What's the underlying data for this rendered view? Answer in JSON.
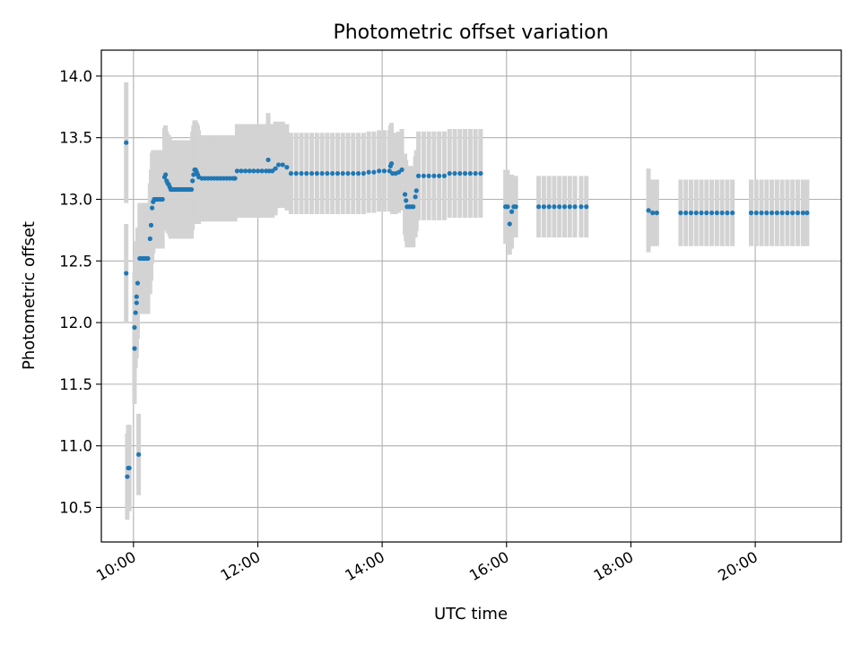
{
  "chart_data": {
    "type": "scatter",
    "title": "Photometric offset variation",
    "xlabel": "UTC time",
    "ylabel": "Photometric offset",
    "x_range": [
      "09:29",
      "21:23"
    ],
    "ylim": [
      10.22,
      14.21
    ],
    "xticks": [
      "10:00",
      "12:00",
      "14:00",
      "16:00",
      "18:00",
      "20:00"
    ],
    "yticks": [
      "10.5",
      "11.0",
      "11.5",
      "12.0",
      "12.5",
      "13.0",
      "13.5",
      "14.0"
    ],
    "grid": true,
    "colors": {
      "marker": "#1f77b4",
      "errorbar": "#d3d3d3",
      "grid": "#b0b0b0"
    },
    "points": [
      {
        "t": "09:53",
        "y": 13.46,
        "err": 0.49
      },
      {
        "t": "09:53",
        "y": 12.4,
        "err": 0.4
      },
      {
        "t": "09:54",
        "y": 10.75,
        "err": 0.35
      },
      {
        "t": "09:55",
        "y": 10.82,
        "err": 0.35
      },
      {
        "t": "09:56",
        "y": 10.82,
        "err": 0.35
      },
      {
        "t": "10:01",
        "y": 11.79,
        "err": 0.45
      },
      {
        "t": "10:01",
        "y": 11.96,
        "err": 0.45
      },
      {
        "t": "10:02",
        "y": 12.08,
        "err": 0.45
      },
      {
        "t": "10:03",
        "y": 12.16,
        "err": 0.45
      },
      {
        "t": "10:03",
        "y": 12.21,
        "err": 0.45
      },
      {
        "t": "10:04",
        "y": 12.32,
        "err": 0.45
      },
      {
        "t": "10:05",
        "y": 10.93,
        "err": 0.33
      },
      {
        "t": "10:06",
        "y": 12.52,
        "err": 0.45
      },
      {
        "t": "10:08",
        "y": 12.52,
        "err": 0.45
      },
      {
        "t": "10:10",
        "y": 12.52,
        "err": 0.45
      },
      {
        "t": "10:12",
        "y": 12.52,
        "err": 0.45
      },
      {
        "t": "10:14",
        "y": 12.52,
        "err": 0.45
      },
      {
        "t": "10:16",
        "y": 12.68,
        "err": 0.45
      },
      {
        "t": "10:17",
        "y": 12.79,
        "err": 0.45
      },
      {
        "t": "10:18",
        "y": 12.93,
        "err": 0.45
      },
      {
        "t": "10:19",
        "y": 12.98,
        "err": 0.42
      },
      {
        "t": "10:20",
        "y": 13.0,
        "err": 0.4
      },
      {
        "t": "10:22",
        "y": 13.0,
        "err": 0.4
      },
      {
        "t": "10:24",
        "y": 13.0,
        "err": 0.4
      },
      {
        "t": "10:26",
        "y": 13.0,
        "err": 0.4
      },
      {
        "t": "10:28",
        "y": 13.0,
        "err": 0.4
      },
      {
        "t": "10:30",
        "y": 13.18,
        "err": 0.4
      },
      {
        "t": "10:31",
        "y": 13.2,
        "err": 0.4
      },
      {
        "t": "10:32",
        "y": 13.15,
        "err": 0.4
      },
      {
        "t": "10:33",
        "y": 13.13,
        "err": 0.4
      },
      {
        "t": "10:34",
        "y": 13.12,
        "err": 0.4
      },
      {
        "t": "10:35",
        "y": 13.1,
        "err": 0.4
      },
      {
        "t": "10:36",
        "y": 13.08,
        "err": 0.4
      },
      {
        "t": "10:38",
        "y": 13.08,
        "err": 0.4
      },
      {
        "t": "10:40",
        "y": 13.08,
        "err": 0.4
      },
      {
        "t": "10:42",
        "y": 13.08,
        "err": 0.4
      },
      {
        "t": "10:44",
        "y": 13.08,
        "err": 0.4
      },
      {
        "t": "10:46",
        "y": 13.08,
        "err": 0.4
      },
      {
        "t": "10:48",
        "y": 13.08,
        "err": 0.4
      },
      {
        "t": "10:50",
        "y": 13.08,
        "err": 0.4
      },
      {
        "t": "10:52",
        "y": 13.08,
        "err": 0.4
      },
      {
        "t": "10:54",
        "y": 13.08,
        "err": 0.4
      },
      {
        "t": "10:56",
        "y": 13.08,
        "err": 0.4
      },
      {
        "t": "10:57",
        "y": 13.15,
        "err": 0.4
      },
      {
        "t": "10:58",
        "y": 13.2,
        "err": 0.4
      },
      {
        "t": "10:59",
        "y": 13.24,
        "err": 0.4
      },
      {
        "t": "11:00",
        "y": 13.24,
        "err": 0.4
      },
      {
        "t": "11:01",
        "y": 13.22,
        "err": 0.4
      },
      {
        "t": "11:02",
        "y": 13.2,
        "err": 0.4
      },
      {
        "t": "11:03",
        "y": 13.18,
        "err": 0.38
      },
      {
        "t": "11:06",
        "y": 13.17,
        "err": 0.35
      },
      {
        "t": "11:09",
        "y": 13.17,
        "err": 0.35
      },
      {
        "t": "11:12",
        "y": 13.17,
        "err": 0.35
      },
      {
        "t": "11:15",
        "y": 13.17,
        "err": 0.35
      },
      {
        "t": "11:18",
        "y": 13.17,
        "err": 0.35
      },
      {
        "t": "11:21",
        "y": 13.17,
        "err": 0.35
      },
      {
        "t": "11:24",
        "y": 13.17,
        "err": 0.35
      },
      {
        "t": "11:27",
        "y": 13.17,
        "err": 0.35
      },
      {
        "t": "11:30",
        "y": 13.17,
        "err": 0.35
      },
      {
        "t": "11:33",
        "y": 13.17,
        "err": 0.35
      },
      {
        "t": "11:36",
        "y": 13.17,
        "err": 0.35
      },
      {
        "t": "11:38",
        "y": 13.17,
        "err": 0.35
      },
      {
        "t": "11:40",
        "y": 13.23,
        "err": 0.38
      },
      {
        "t": "11:44",
        "y": 13.23,
        "err": 0.38
      },
      {
        "t": "11:48",
        "y": 13.23,
        "err": 0.38
      },
      {
        "t": "11:52",
        "y": 13.23,
        "err": 0.38
      },
      {
        "t": "11:56",
        "y": 13.23,
        "err": 0.38
      },
      {
        "t": "12:00",
        "y": 13.23,
        "err": 0.38
      },
      {
        "t": "12:04",
        "y": 13.23,
        "err": 0.38
      },
      {
        "t": "12:08",
        "y": 13.23,
        "err": 0.38
      },
      {
        "t": "12:10",
        "y": 13.32,
        "err": 0.38
      },
      {
        "t": "12:11",
        "y": 13.23,
        "err": 0.38
      },
      {
        "t": "12:14",
        "y": 13.23,
        "err": 0.38
      },
      {
        "t": "12:17",
        "y": 13.25,
        "err": 0.38
      },
      {
        "t": "12:20",
        "y": 13.28,
        "err": 0.35
      },
      {
        "t": "12:24",
        "y": 13.28,
        "err": 0.35
      },
      {
        "t": "12:28",
        "y": 13.26,
        "err": 0.35
      },
      {
        "t": "12:32",
        "y": 13.21,
        "err": 0.33
      },
      {
        "t": "12:37",
        "y": 13.21,
        "err": 0.33
      },
      {
        "t": "12:42",
        "y": 13.21,
        "err": 0.33
      },
      {
        "t": "12:47",
        "y": 13.21,
        "err": 0.33
      },
      {
        "t": "12:52",
        "y": 13.21,
        "err": 0.33
      },
      {
        "t": "12:57",
        "y": 13.21,
        "err": 0.33
      },
      {
        "t": "13:02",
        "y": 13.21,
        "err": 0.33
      },
      {
        "t": "13:07",
        "y": 13.21,
        "err": 0.33
      },
      {
        "t": "13:12",
        "y": 13.21,
        "err": 0.33
      },
      {
        "t": "13:17",
        "y": 13.21,
        "err": 0.33
      },
      {
        "t": "13:22",
        "y": 13.21,
        "err": 0.33
      },
      {
        "t": "13:27",
        "y": 13.21,
        "err": 0.33
      },
      {
        "t": "13:32",
        "y": 13.21,
        "err": 0.33
      },
      {
        "t": "13:37",
        "y": 13.21,
        "err": 0.33
      },
      {
        "t": "13:42",
        "y": 13.21,
        "err": 0.33
      },
      {
        "t": "13:47",
        "y": 13.22,
        "err": 0.33
      },
      {
        "t": "13:52",
        "y": 13.22,
        "err": 0.33
      },
      {
        "t": "13:57",
        "y": 13.23,
        "err": 0.33
      },
      {
        "t": "14:02",
        "y": 13.23,
        "err": 0.33
      },
      {
        "t": "14:07",
        "y": 13.23,
        "err": 0.33
      },
      {
        "t": "14:08",
        "y": 13.27,
        "err": 0.33
      },
      {
        "t": "14:09",
        "y": 13.29,
        "err": 0.33
      },
      {
        "t": "14:10",
        "y": 13.21,
        "err": 0.33
      },
      {
        "t": "14:13",
        "y": 13.21,
        "err": 0.33
      },
      {
        "t": "14:16",
        "y": 13.22,
        "err": 0.33
      },
      {
        "t": "14:19",
        "y": 13.24,
        "err": 0.33
      },
      {
        "t": "14:22",
        "y": 13.04,
        "err": 0.33
      },
      {
        "t": "14:23",
        "y": 12.99,
        "err": 0.33
      },
      {
        "t": "14:24",
        "y": 12.94,
        "err": 0.33
      },
      {
        "t": "14:26",
        "y": 12.94,
        "err": 0.33
      },
      {
        "t": "14:28",
        "y": 12.94,
        "err": 0.33
      },
      {
        "t": "14:30",
        "y": 12.94,
        "err": 0.33
      },
      {
        "t": "14:32",
        "y": 13.02,
        "err": 0.33
      },
      {
        "t": "14:33",
        "y": 13.07,
        "err": 0.33
      },
      {
        "t": "14:35",
        "y": 13.19,
        "err": 0.36
      },
      {
        "t": "14:40",
        "y": 13.19,
        "err": 0.36
      },
      {
        "t": "14:45",
        "y": 13.19,
        "err": 0.36
      },
      {
        "t": "14:50",
        "y": 13.19,
        "err": 0.36
      },
      {
        "t": "14:55",
        "y": 13.19,
        "err": 0.36
      },
      {
        "t": "15:00",
        "y": 13.19,
        "err": 0.36
      },
      {
        "t": "15:05",
        "y": 13.21,
        "err": 0.36
      },
      {
        "t": "15:10",
        "y": 13.21,
        "err": 0.36
      },
      {
        "t": "15:15",
        "y": 13.21,
        "err": 0.36
      },
      {
        "t": "15:20",
        "y": 13.21,
        "err": 0.36
      },
      {
        "t": "15:25",
        "y": 13.21,
        "err": 0.36
      },
      {
        "t": "15:30",
        "y": 13.21,
        "err": 0.36
      },
      {
        "t": "15:35",
        "y": 13.21,
        "err": 0.36
      },
      {
        "t": "15:59",
        "y": 12.94,
        "err": 0.3
      },
      {
        "t": "16:01",
        "y": 12.94,
        "err": 0.3
      },
      {
        "t": "16:03",
        "y": 12.8,
        "err": 0.25
      },
      {
        "t": "16:05",
        "y": 12.9,
        "err": 0.3
      },
      {
        "t": "16:07",
        "y": 12.94,
        "err": 0.25
      },
      {
        "t": "16:09",
        "y": 12.94,
        "err": 0.25
      },
      {
        "t": "16:31",
        "y": 12.94,
        "err": 0.25
      },
      {
        "t": "16:36",
        "y": 12.94,
        "err": 0.25
      },
      {
        "t": "16:41",
        "y": 12.94,
        "err": 0.25
      },
      {
        "t": "16:46",
        "y": 12.94,
        "err": 0.25
      },
      {
        "t": "16:51",
        "y": 12.94,
        "err": 0.25
      },
      {
        "t": "16:56",
        "y": 12.94,
        "err": 0.25
      },
      {
        "t": "17:01",
        "y": 12.94,
        "err": 0.25
      },
      {
        "t": "17:06",
        "y": 12.94,
        "err": 0.25
      },
      {
        "t": "17:12",
        "y": 12.94,
        "err": 0.25
      },
      {
        "t": "17:17",
        "y": 12.94,
        "err": 0.25
      },
      {
        "t": "18:17",
        "y": 12.91,
        "err": 0.34
      },
      {
        "t": "18:21",
        "y": 12.89,
        "err": 0.27
      },
      {
        "t": "18:25",
        "y": 12.89,
        "err": 0.27
      },
      {
        "t": "18:48",
        "y": 12.89,
        "err": 0.27
      },
      {
        "t": "18:53",
        "y": 12.89,
        "err": 0.27
      },
      {
        "t": "18:58",
        "y": 12.89,
        "err": 0.27
      },
      {
        "t": "19:03",
        "y": 12.89,
        "err": 0.27
      },
      {
        "t": "19:08",
        "y": 12.89,
        "err": 0.27
      },
      {
        "t": "19:13",
        "y": 12.89,
        "err": 0.27
      },
      {
        "t": "19:18",
        "y": 12.89,
        "err": 0.27
      },
      {
        "t": "19:23",
        "y": 12.89,
        "err": 0.27
      },
      {
        "t": "19:28",
        "y": 12.89,
        "err": 0.27
      },
      {
        "t": "19:33",
        "y": 12.89,
        "err": 0.27
      },
      {
        "t": "19:38",
        "y": 12.89,
        "err": 0.27
      },
      {
        "t": "19:56",
        "y": 12.89,
        "err": 0.27
      },
      {
        "t": "20:01",
        "y": 12.89,
        "err": 0.27
      },
      {
        "t": "20:06",
        "y": 12.89,
        "err": 0.27
      },
      {
        "t": "20:11",
        "y": 12.89,
        "err": 0.27
      },
      {
        "t": "20:16",
        "y": 12.89,
        "err": 0.27
      },
      {
        "t": "20:21",
        "y": 12.89,
        "err": 0.27
      },
      {
        "t": "20:26",
        "y": 12.89,
        "err": 0.27
      },
      {
        "t": "20:31",
        "y": 12.89,
        "err": 0.27
      },
      {
        "t": "20:36",
        "y": 12.89,
        "err": 0.27
      },
      {
        "t": "20:41",
        "y": 12.89,
        "err": 0.27
      },
      {
        "t": "20:46",
        "y": 12.89,
        "err": 0.27
      },
      {
        "t": "20:50",
        "y": 12.89,
        "err": 0.27
      }
    ]
  }
}
